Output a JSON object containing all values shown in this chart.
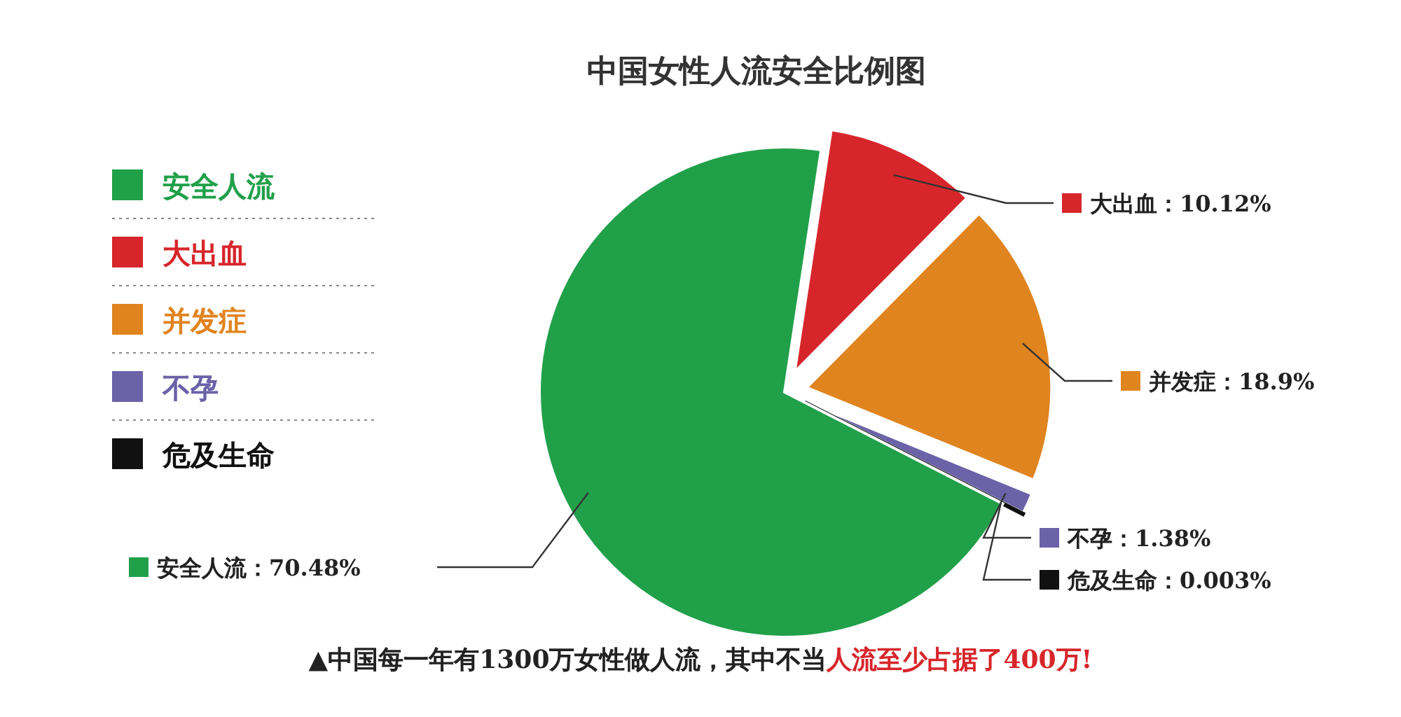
{
  "chart_data": {
    "type": "pie",
    "title": "中国女性人流安全比例图",
    "categories": [
      "大出血",
      "并发症",
      "不孕",
      "危及生命",
      "安全人流"
    ],
    "values": [
      10.12,
      18.9,
      1.38,
      0.003,
      70.48
    ],
    "colors": [
      "#d7262b",
      "#e0841f",
      "#6b62a8",
      "#111111",
      "#21a04a"
    ],
    "value_labels": [
      "：10.12%",
      "：18.9%",
      "：1.38%",
      "：0.003%",
      "：70.48%"
    ],
    "legend": "left",
    "annotations": [
      "▲中国每一年有1300万女性做人流，其中不当",
      "人流至少占据了400万!"
    ]
  }
}
